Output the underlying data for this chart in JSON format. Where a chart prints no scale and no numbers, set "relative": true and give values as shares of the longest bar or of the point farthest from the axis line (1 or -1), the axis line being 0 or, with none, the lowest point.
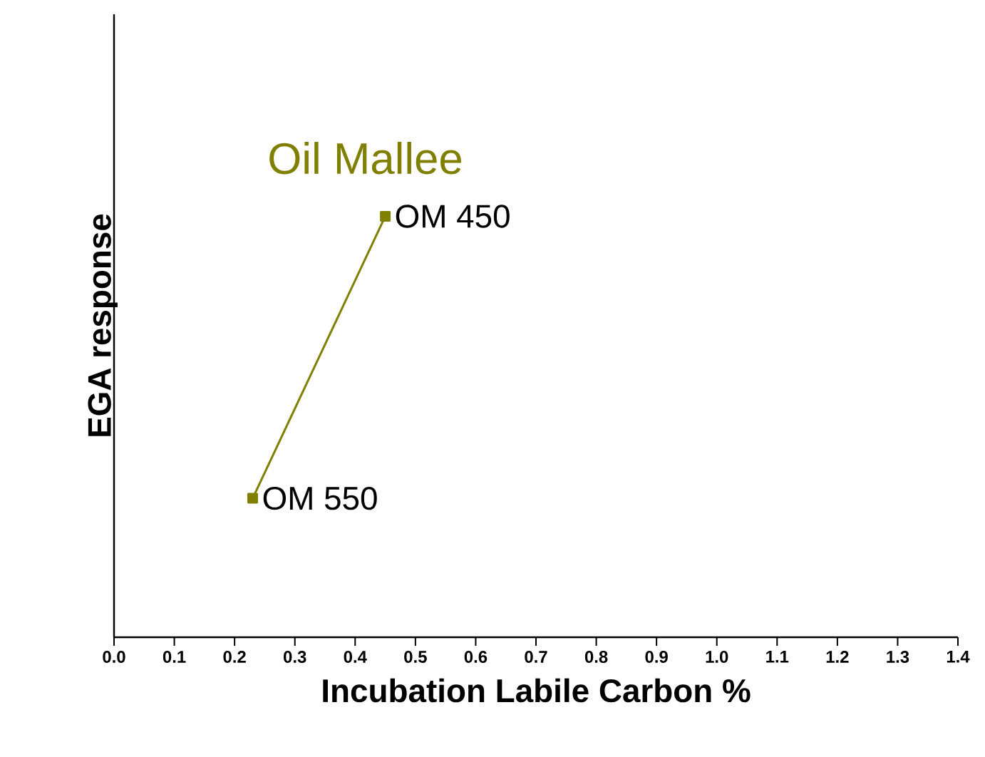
{
  "chart_data": {
    "type": "line",
    "relative": true,
    "xlabel": "Incubation Labile Carbon %",
    "ylabel": "EGA response",
    "xlim": [
      0,
      1.4
    ],
    "xticks": [
      {
        "value": 0,
        "label": "0.0"
      },
      0.1,
      0.2,
      0.3,
      0.4,
      0.5,
      0.6,
      0.7,
      0.8,
      0.9,
      {
        "value": 1,
        "label": "1.0"
      },
      1.1,
      1.2,
      1.3,
      1.4
    ],
    "series": [
      {
        "name": "Oil Mallee",
        "color": "#7f7f00",
        "x": [
          0.23,
          0.45
        ],
        "values": [
          0.33,
          1
        ]
      }
    ],
    "annotations": [
      {
        "text": "OM 550",
        "x": 0.23,
        "y": 0.33
      },
      {
        "text": "OM 450",
        "x": 0.45,
        "y": 1
      }
    ],
    "marker": "square",
    "line_style": "solid",
    "grid": false,
    "legend": false
  }
}
